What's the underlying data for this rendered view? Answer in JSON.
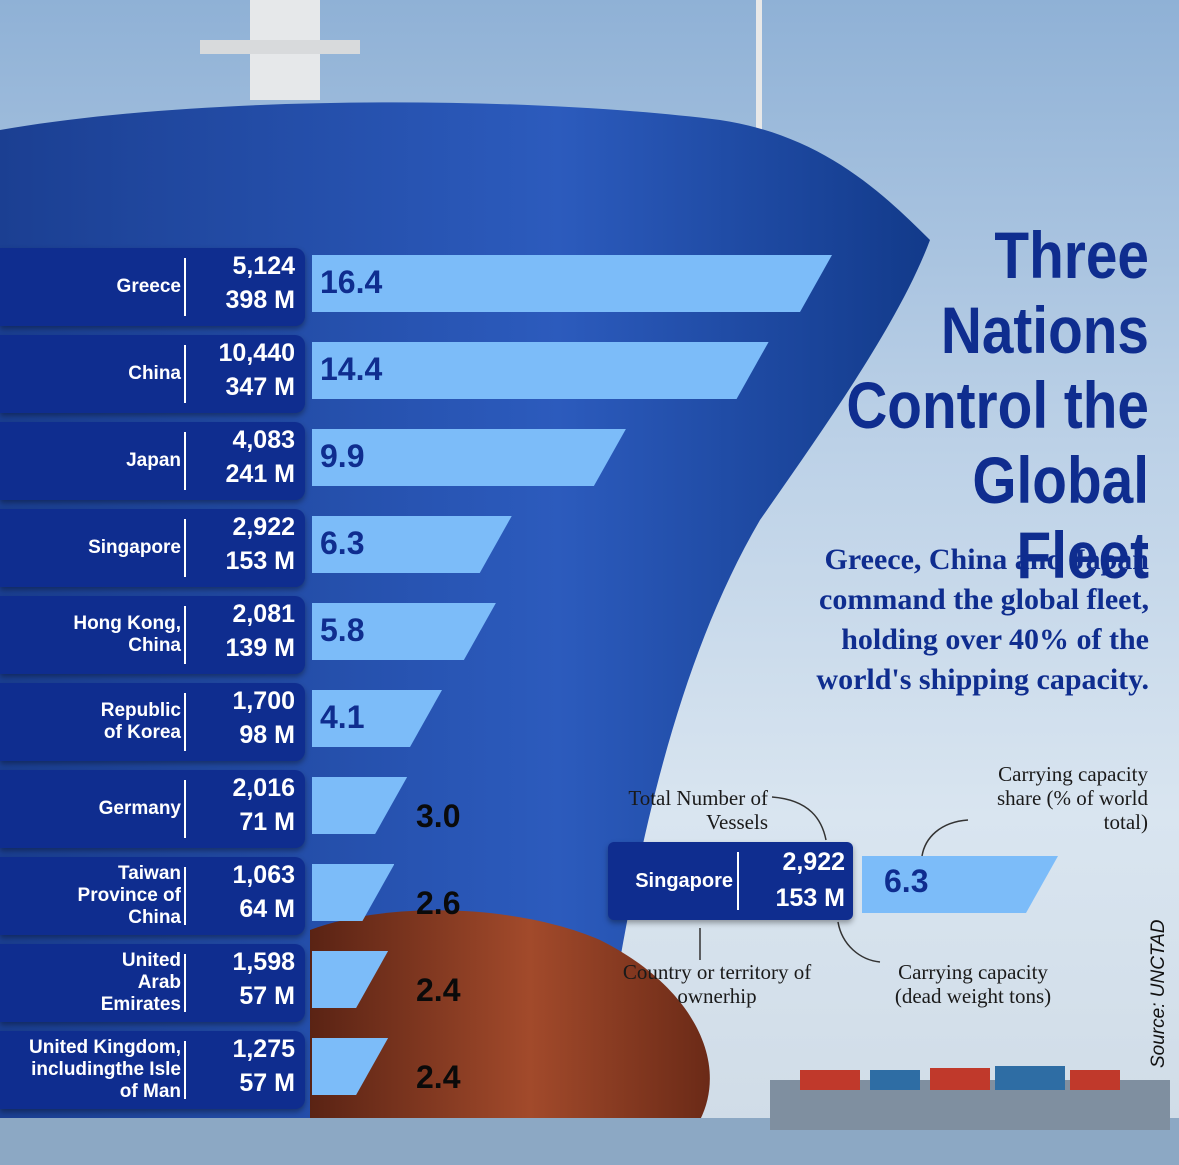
{
  "title": "Three\nNations\nControl the\nGlobal Fleet",
  "subtitle": "Greece, China and Japan command the global fleet, holding over 40% of the world's shipping capacity.",
  "source": "Source: UNCTAD",
  "colors": {
    "brand_blue": "#0f2d8f",
    "bar_blue": "#7cbcf9",
    "hull_red": "#8a3a22"
  },
  "legend": {
    "country": "Singapore",
    "vessels": "2,922",
    "dwt": "153 M",
    "share": "6.3",
    "label_vessels": "Total Number of Vessels",
    "label_share": "Carrying capacity share (% of world total)",
    "label_country": "Country or territory of ownerhip",
    "label_dwt": "Carrying capacity (dead weight tons)"
  },
  "chart_data": {
    "type": "bar",
    "orientation": "horizontal",
    "categories": [
      "Greece",
      "China",
      "Japan",
      "Singapore",
      "Hong Kong, China",
      "Republic of Korea",
      "Germany",
      "Taiwan Province of China",
      "United Arab Emirates",
      "United Kingdom, includingthe Isle of Man"
    ],
    "category_lines": [
      [
        "Greece"
      ],
      [
        "China"
      ],
      [
        "Japan"
      ],
      [
        "Singapore"
      ],
      [
        "Hong Kong,",
        "China"
      ],
      [
        "Republic",
        "of Korea"
      ],
      [
        "Germany"
      ],
      [
        "Taiwan",
        "Province of",
        "China"
      ],
      [
        "United",
        "Arab",
        "Emirates"
      ],
      [
        "United Kingdom,",
        "includingthe Isle",
        "of Man"
      ]
    ],
    "vessels": [
      "5,124",
      "10,440",
      "4,083",
      "2,922",
      "2,081",
      "1,700",
      "2,016",
      "1,063",
      "1,598",
      "1,275"
    ],
    "dwt": [
      "398 M",
      "347 M",
      "241 M",
      "153 M",
      "139 M",
      "98 M",
      "71 M",
      "64 M",
      "57 M",
      "57 M"
    ],
    "values": [
      16.4,
      14.4,
      9.9,
      6.3,
      5.8,
      4.1,
      3.0,
      2.6,
      2.4,
      2.4
    ],
    "value_labels": [
      "16.4",
      "14.4",
      "9.9",
      "6.3",
      "5.8",
      "4.1",
      "3.0",
      "2.6",
      "2.4",
      "2.4"
    ],
    "title": "Three Nations Control the Global Fleet",
    "xlabel": "",
    "ylabel": ""
  }
}
